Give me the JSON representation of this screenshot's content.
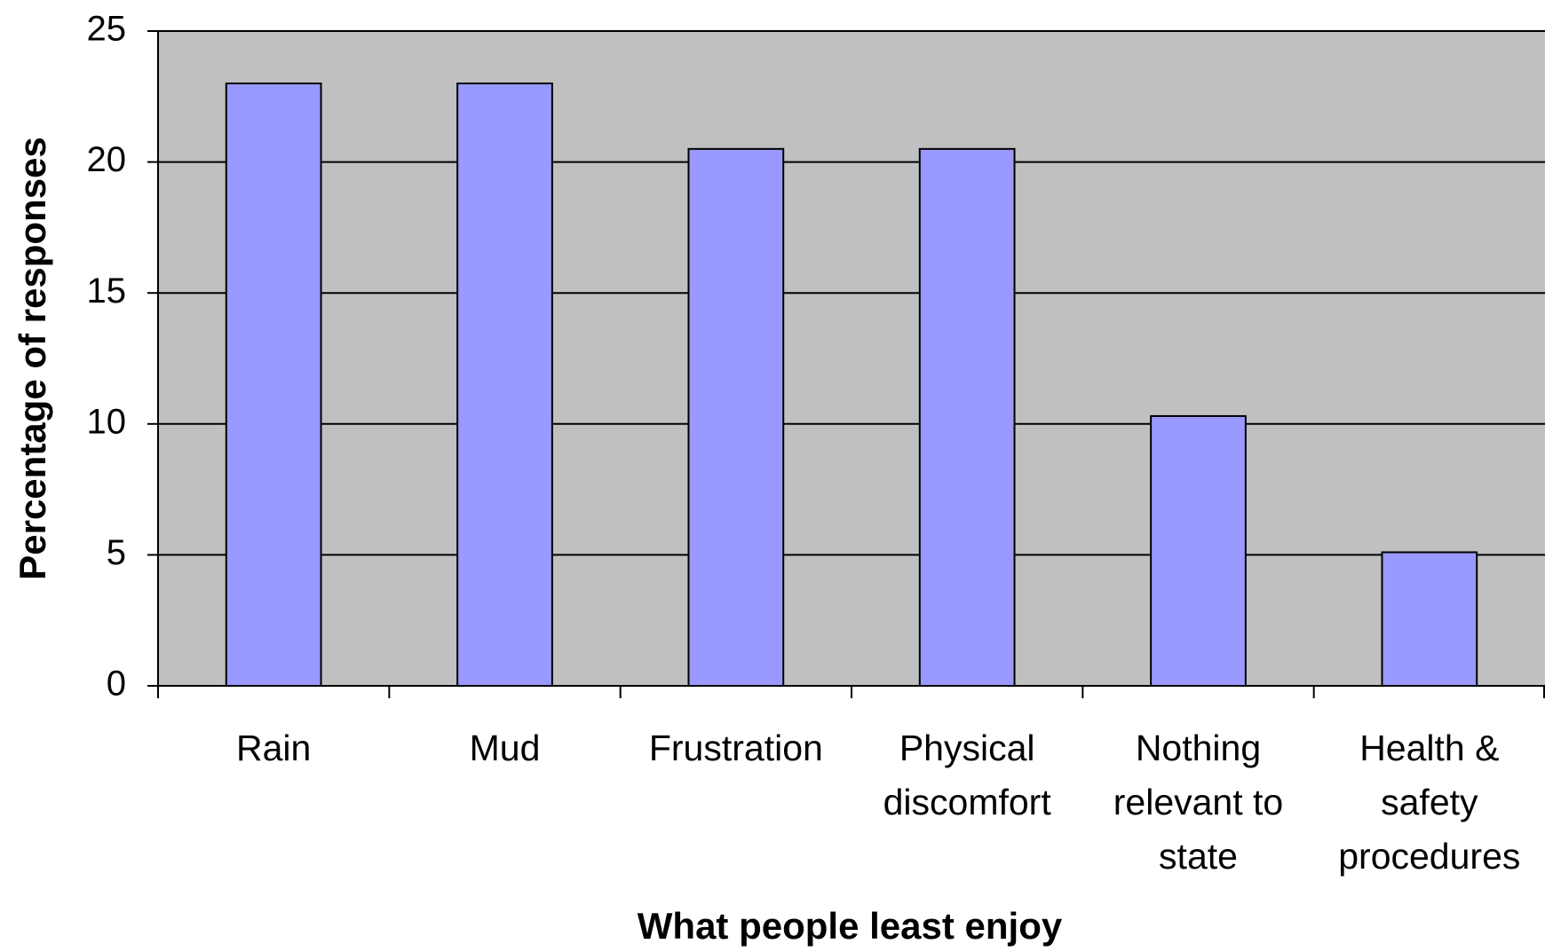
{
  "chart_data": {
    "type": "bar",
    "x_label": "What people least enjoy",
    "y_label": "Percentage of responses",
    "categories": [
      "Rain",
      "Mud",
      "Frustration",
      "Physical discomfort",
      "Nothing relevant to state",
      "Health & safety procedures"
    ],
    "values": [
      23,
      23,
      20.5,
      20.5,
      10.3,
      5.1
    ],
    "color": "#9999ff",
    "ylim": [
      0,
      25
    ],
    "yticks": [
      0,
      5,
      10,
      15,
      20,
      25
    ],
    "grid": true
  }
}
